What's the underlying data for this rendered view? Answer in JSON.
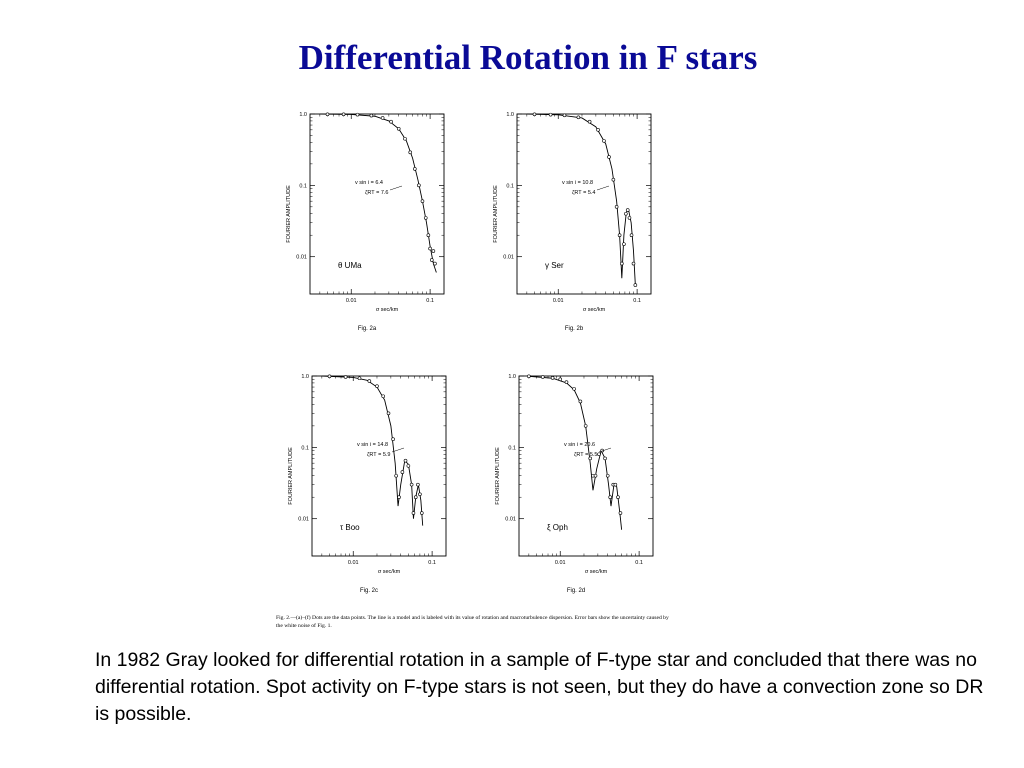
{
  "slide": {
    "title": "Differential Rotation in F stars",
    "caption": "Fig. 2.—(a)–(f) Dots are the data points. The line is a model and is labeled with its value of rotation and macroturbulence dispersion. Error bars show the uncertainty caused by the white noise of Fig. 1.",
    "body": "In 1982 Gray looked for differential rotation in a sample of F-type star and concluded that there was no differential rotation. Spot activity on F-type stars is not seen, but they do have a convection zone so DR is possible."
  },
  "chart_data": [
    {
      "type": "scatter",
      "figure_label": "Fig. 2a",
      "star": "θ UMa",
      "xlabel": "σ  sec/km",
      "ylabel": "FOURIER  AMPLITUDE",
      "xscale": "log",
      "yscale": "log",
      "xlim": [
        0.003,
        0.15
      ],
      "ylim": [
        0.003,
        1.0
      ],
      "x_ticks": [
        "0.01",
        "0.1"
      ],
      "y_ticks": [
        "1.0",
        "0.1",
        "0.01"
      ],
      "annotation": [
        "v sin i  =  6.4",
        "ζRT  =  7.6"
      ],
      "points": [
        {
          "x": 0.005,
          "y": 0.99
        },
        {
          "x": 0.008,
          "y": 0.99
        },
        {
          "x": 0.012,
          "y": 0.98
        },
        {
          "x": 0.018,
          "y": 0.95
        },
        {
          "x": 0.025,
          "y": 0.88
        },
        {
          "x": 0.032,
          "y": 0.78
        },
        {
          "x": 0.04,
          "y": 0.62
        },
        {
          "x": 0.048,
          "y": 0.45
        },
        {
          "x": 0.056,
          "y": 0.29
        },
        {
          "x": 0.064,
          "y": 0.17
        },
        {
          "x": 0.072,
          "y": 0.1
        },
        {
          "x": 0.08,
          "y": 0.06
        },
        {
          "x": 0.088,
          "y": 0.035
        },
        {
          "x": 0.095,
          "y": 0.02
        },
        {
          "x": 0.1,
          "y": 0.013
        },
        {
          "x": 0.105,
          "y": 0.009
        },
        {
          "x": 0.11,
          "y": 0.012
        },
        {
          "x": 0.115,
          "y": 0.008
        }
      ],
      "model": [
        {
          "x": 0.004,
          "y": 1.0
        },
        {
          "x": 0.01,
          "y": 0.985
        },
        {
          "x": 0.02,
          "y": 0.93
        },
        {
          "x": 0.03,
          "y": 0.8
        },
        {
          "x": 0.04,
          "y": 0.62
        },
        {
          "x": 0.05,
          "y": 0.42
        },
        {
          "x": 0.06,
          "y": 0.24
        },
        {
          "x": 0.07,
          "y": 0.12
        },
        {
          "x": 0.08,
          "y": 0.06
        },
        {
          "x": 0.09,
          "y": 0.03
        },
        {
          "x": 0.1,
          "y": 0.014
        },
        {
          "x": 0.11,
          "y": 0.008
        },
        {
          "x": 0.12,
          "y": 0.006
        }
      ]
    },
    {
      "type": "scatter",
      "figure_label": "Fig. 2b",
      "star": "γ Ser",
      "xlabel": "σ  sec/km",
      "ylabel": "FOURIER  AMPLITUDE",
      "xscale": "log",
      "yscale": "log",
      "xlim": [
        0.003,
        0.15
      ],
      "ylim": [
        0.003,
        1.0
      ],
      "x_ticks": [
        "0.01",
        "0.1"
      ],
      "y_ticks": [
        "1.0",
        "0.1",
        "0.01"
      ],
      "annotation": [
        "v sin i  =  10.8",
        "ζRT  =  5.4"
      ],
      "points": [
        {
          "x": 0.005,
          "y": 0.99
        },
        {
          "x": 0.008,
          "y": 0.98
        },
        {
          "x": 0.012,
          "y": 0.96
        },
        {
          "x": 0.018,
          "y": 0.9
        },
        {
          "x": 0.025,
          "y": 0.78
        },
        {
          "x": 0.032,
          "y": 0.6
        },
        {
          "x": 0.038,
          "y": 0.42
        },
        {
          "x": 0.044,
          "y": 0.25
        },
        {
          "x": 0.05,
          "y": 0.12
        },
        {
          "x": 0.055,
          "y": 0.05
        },
        {
          "x": 0.06,
          "y": 0.02
        },
        {
          "x": 0.064,
          "y": 0.008
        },
        {
          "x": 0.068,
          "y": 0.015
        },
        {
          "x": 0.072,
          "y": 0.04
        },
        {
          "x": 0.076,
          "y": 0.045
        },
        {
          "x": 0.08,
          "y": 0.035
        },
        {
          "x": 0.085,
          "y": 0.02
        },
        {
          "x": 0.09,
          "y": 0.008
        },
        {
          "x": 0.095,
          "y": 0.004
        }
      ],
      "model": [
        {
          "x": 0.004,
          "y": 1.0
        },
        {
          "x": 0.01,
          "y": 0.975
        },
        {
          "x": 0.02,
          "y": 0.88
        },
        {
          "x": 0.03,
          "y": 0.66
        },
        {
          "x": 0.04,
          "y": 0.38
        },
        {
          "x": 0.048,
          "y": 0.17
        },
        {
          "x": 0.055,
          "y": 0.06
        },
        {
          "x": 0.06,
          "y": 0.02
        },
        {
          "x": 0.064,
          "y": 0.005
        },
        {
          "x": 0.068,
          "y": 0.02
        },
        {
          "x": 0.073,
          "y": 0.042
        },
        {
          "x": 0.078,
          "y": 0.045
        },
        {
          "x": 0.084,
          "y": 0.03
        },
        {
          "x": 0.09,
          "y": 0.012
        },
        {
          "x": 0.095,
          "y": 0.004
        }
      ]
    },
    {
      "type": "scatter",
      "figure_label": "Fig. 2c",
      "star": "τ Boo",
      "xlabel": "σ  sec/km",
      "ylabel": "FOURIER  AMPLITUDE",
      "xscale": "log",
      "yscale": "log",
      "xlim": [
        0.003,
        0.15
      ],
      "ylim": [
        0.003,
        1.0
      ],
      "x_ticks": [
        "0.01",
        "0.1"
      ],
      "y_ticks": [
        "1.0",
        "0.1",
        "0.01"
      ],
      "annotation": [
        "v sin i  =  14.8",
        "ζRT  =  5.9"
      ],
      "points": [
        {
          "x": 0.005,
          "y": 0.99
        },
        {
          "x": 0.008,
          "y": 0.97
        },
        {
          "x": 0.012,
          "y": 0.93
        },
        {
          "x": 0.016,
          "y": 0.85
        },
        {
          "x": 0.02,
          "y": 0.72
        },
        {
          "x": 0.024,
          "y": 0.52
        },
        {
          "x": 0.028,
          "y": 0.3
        },
        {
          "x": 0.032,
          "y": 0.13
        },
        {
          "x": 0.035,
          "y": 0.04
        },
        {
          "x": 0.038,
          "y": 0.02
        },
        {
          "x": 0.042,
          "y": 0.045
        },
        {
          "x": 0.046,
          "y": 0.065
        },
        {
          "x": 0.05,
          "y": 0.055
        },
        {
          "x": 0.055,
          "y": 0.03
        },
        {
          "x": 0.058,
          "y": 0.012
        },
        {
          "x": 0.062,
          "y": 0.02
        },
        {
          "x": 0.066,
          "y": 0.03
        },
        {
          "x": 0.07,
          "y": 0.022
        },
        {
          "x": 0.074,
          "y": 0.012
        }
      ],
      "model": [
        {
          "x": 0.004,
          "y": 1.0
        },
        {
          "x": 0.01,
          "y": 0.955
        },
        {
          "x": 0.015,
          "y": 0.87
        },
        {
          "x": 0.02,
          "y": 0.7
        },
        {
          "x": 0.025,
          "y": 0.46
        },
        {
          "x": 0.03,
          "y": 0.2
        },
        {
          "x": 0.034,
          "y": 0.06
        },
        {
          "x": 0.037,
          "y": 0.015
        },
        {
          "x": 0.04,
          "y": 0.03
        },
        {
          "x": 0.045,
          "y": 0.065
        },
        {
          "x": 0.05,
          "y": 0.058
        },
        {
          "x": 0.055,
          "y": 0.03
        },
        {
          "x": 0.058,
          "y": 0.01
        },
        {
          "x": 0.062,
          "y": 0.02
        },
        {
          "x": 0.067,
          "y": 0.03
        },
        {
          "x": 0.072,
          "y": 0.018
        },
        {
          "x": 0.076,
          "y": 0.008
        }
      ]
    },
    {
      "type": "scatter",
      "figure_label": "Fig. 2d",
      "star": "ξ Oph",
      "xlabel": "σ  sec/km",
      "ylabel": "FOURIER  AMPLITUDE",
      "xscale": "log",
      "yscale": "log",
      "xlim": [
        0.003,
        0.15
      ],
      "ylim": [
        0.003,
        1.0
      ],
      "x_ticks": [
        "0.01",
        "0.1"
      ],
      "y_ticks": [
        "1.0",
        "0.1",
        "0.01"
      ],
      "annotation": [
        "v sin i  =  20.6",
        "ζRT  =  5.5"
      ],
      "points": [
        {
          "x": 0.004,
          "y": 0.99
        },
        {
          "x": 0.006,
          "y": 0.97
        },
        {
          "x": 0.008,
          "y": 0.94
        },
        {
          "x": 0.01,
          "y": 0.9
        },
        {
          "x": 0.012,
          "y": 0.82
        },
        {
          "x": 0.015,
          "y": 0.66
        },
        {
          "x": 0.018,
          "y": 0.44
        },
        {
          "x": 0.021,
          "y": 0.2
        },
        {
          "x": 0.024,
          "y": 0.07
        },
        {
          "x": 0.026,
          "y": 0.04
        },
        {
          "x": 0.028,
          "y": 0.04
        },
        {
          "x": 0.031,
          "y": 0.08
        },
        {
          "x": 0.034,
          "y": 0.09
        },
        {
          "x": 0.037,
          "y": 0.07
        },
        {
          "x": 0.04,
          "y": 0.04
        },
        {
          "x": 0.043,
          "y": 0.02
        },
        {
          "x": 0.047,
          "y": 0.03
        },
        {
          "x": 0.05,
          "y": 0.03
        },
        {
          "x": 0.054,
          "y": 0.02
        },
        {
          "x": 0.058,
          "y": 0.012
        }
      ],
      "model": [
        {
          "x": 0.004,
          "y": 0.99
        },
        {
          "x": 0.008,
          "y": 0.93
        },
        {
          "x": 0.012,
          "y": 0.8
        },
        {
          "x": 0.015,
          "y": 0.64
        },
        {
          "x": 0.018,
          "y": 0.42
        },
        {
          "x": 0.021,
          "y": 0.2
        },
        {
          "x": 0.024,
          "y": 0.06
        },
        {
          "x": 0.026,
          "y": 0.025
        },
        {
          "x": 0.029,
          "y": 0.05
        },
        {
          "x": 0.033,
          "y": 0.09
        },
        {
          "x": 0.037,
          "y": 0.07
        },
        {
          "x": 0.041,
          "y": 0.03
        },
        {
          "x": 0.044,
          "y": 0.015
        },
        {
          "x": 0.048,
          "y": 0.03
        },
        {
          "x": 0.052,
          "y": 0.028
        },
        {
          "x": 0.057,
          "y": 0.012
        },
        {
          "x": 0.06,
          "y": 0.007
        }
      ]
    }
  ]
}
